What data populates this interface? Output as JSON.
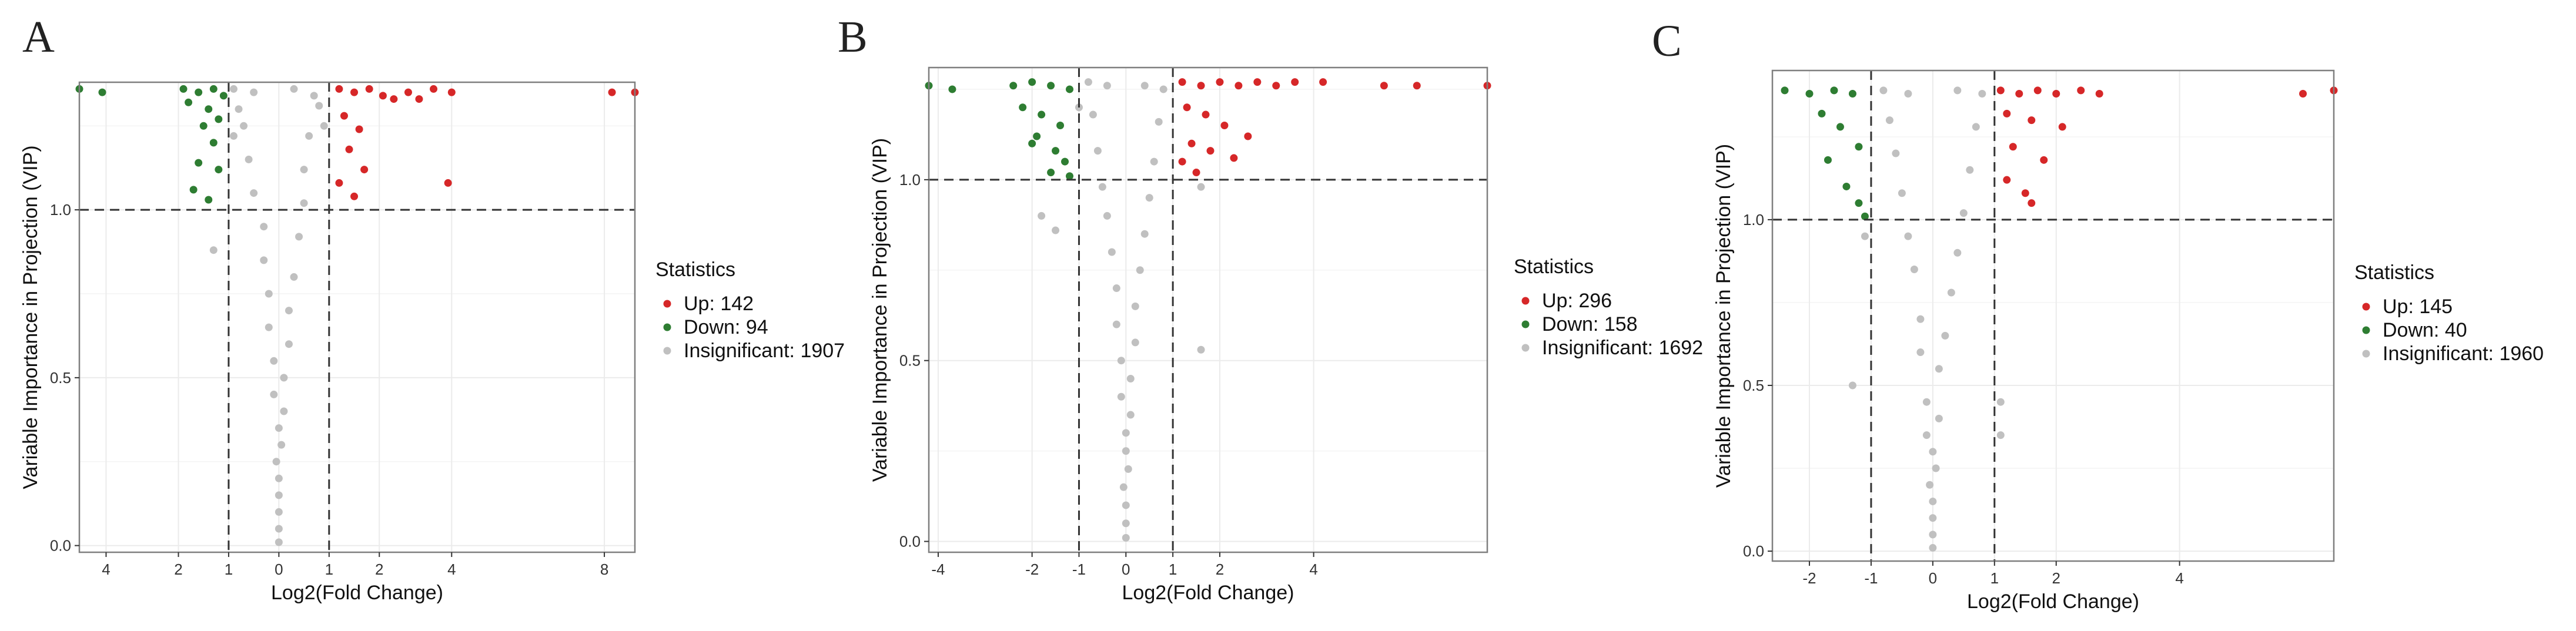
{
  "figure": {
    "panels": [
      "A",
      "B",
      "C"
    ]
  },
  "colors": {
    "up": "#d62728",
    "down": "#2e7d32",
    "insignificant": "#c0c0c0",
    "grid": "#ebebeb",
    "frame": "#7f7f7f"
  },
  "chart_data": [
    {
      "type": "scatter",
      "panel": "A",
      "xlabel": "Log2(Fold Change)",
      "ylabel": "Variable Importance in Projection (VIP)",
      "x_ticks": [
        "4",
        "2",
        "1",
        "0",
        "1",
        "2",
        "4",
        "8"
      ],
      "y_ticks": [
        "0.0",
        "0.5",
        "1.0"
      ],
      "xlim": [
        -4.7,
        8.8
      ],
      "ylim": [
        -0.02,
        1.38
      ],
      "thresholds": {
        "x": [
          -1,
          1
        ],
        "y": 1.0
      },
      "legend": {
        "title": "Statistics",
        "items": [
          {
            "key": "up",
            "label": "Up: 142"
          },
          {
            "key": "down",
            "label": "Down: 94"
          },
          {
            "key": "insignificant",
            "label": "Insignificant: 1907"
          }
        ]
      },
      "series": [
        {
          "key": "up",
          "points": [
            [
              1.2,
              1.36
            ],
            [
              1.5,
              1.35
            ],
            [
              1.8,
              1.36
            ],
            [
              2.1,
              1.34
            ],
            [
              2.4,
              1.33
            ],
            [
              2.8,
              1.35
            ],
            [
              3.1,
              1.33
            ],
            [
              3.5,
              1.36
            ],
            [
              4.0,
              1.35
            ],
            [
              1.3,
              1.28
            ],
            [
              1.6,
              1.24
            ],
            [
              1.4,
              1.18
            ],
            [
              1.7,
              1.12
            ],
            [
              1.2,
              1.08
            ],
            [
              1.5,
              1.04
            ],
            [
              3.9,
              1.08
            ],
            [
              8.2,
              1.35
            ],
            [
              8.8,
              1.35
            ]
          ]
        },
        {
          "key": "down",
          "points": [
            [
              -4.7,
              1.36
            ],
            [
              -4.1,
              1.35
            ],
            [
              -1.9,
              1.36
            ],
            [
              -1.6,
              1.35
            ],
            [
              -1.3,
              1.36
            ],
            [
              -1.1,
              1.34
            ],
            [
              -1.8,
              1.32
            ],
            [
              -1.4,
              1.3
            ],
            [
              -1.2,
              1.27
            ],
            [
              -1.5,
              1.25
            ],
            [
              -1.3,
              1.2
            ],
            [
              -1.6,
              1.14
            ],
            [
              -1.2,
              1.12
            ],
            [
              -1.7,
              1.06
            ],
            [
              -1.4,
              1.03
            ]
          ]
        },
        {
          "key": "insignificant",
          "points": [
            [
              -0.9,
              1.36
            ],
            [
              -0.5,
              1.35
            ],
            [
              0.3,
              1.36
            ],
            [
              0.7,
              1.34
            ],
            [
              -0.8,
              1.3
            ],
            [
              0.8,
              1.31
            ],
            [
              -0.7,
              1.25
            ],
            [
              0.6,
              1.22
            ],
            [
              -0.6,
              1.15
            ],
            [
              0.5,
              1.12
            ],
            [
              -0.5,
              1.05
            ],
            [
              0.5,
              1.02
            ],
            [
              -0.3,
              0.95
            ],
            [
              0.4,
              0.92
            ],
            [
              -1.3,
              0.88
            ],
            [
              -0.3,
              0.85
            ],
            [
              0.3,
              0.8
            ],
            [
              -0.2,
              0.75
            ],
            [
              0.2,
              0.7
            ],
            [
              -0.2,
              0.65
            ],
            [
              0.2,
              0.6
            ],
            [
              -0.1,
              0.55
            ],
            [
              0.1,
              0.5
            ],
            [
              -0.1,
              0.45
            ],
            [
              0.1,
              0.4
            ],
            [
              0.0,
              0.35
            ],
            [
              0.05,
              0.3
            ],
            [
              -0.05,
              0.25
            ],
            [
              0.0,
              0.2
            ],
            [
              0.0,
              0.15
            ],
            [
              0.0,
              0.1
            ],
            [
              0.0,
              0.05
            ],
            [
              0.0,
              0.01
            ],
            [
              0.9,
              1.25
            ],
            [
              -0.9,
              1.22
            ]
          ]
        }
      ]
    },
    {
      "type": "scatter",
      "panel": "B",
      "xlabel": "Log2(Fold Change)",
      "ylabel": "Variable Importance in Projection (VIP)",
      "x_ticks": [
        "-4",
        "-2",
        "-1",
        "0",
        "1",
        "2",
        "4"
      ],
      "y_ticks": [
        "0.0",
        "0.5",
        "1.0"
      ],
      "xlim": [
        -4.2,
        7.7
      ],
      "ylim": [
        -0.03,
        1.31
      ],
      "thresholds": {
        "x": [
          -1,
          1
        ],
        "y": 1.0
      },
      "legend": {
        "title": "Statistics",
        "items": [
          {
            "key": "up",
            "label": "Up: 296"
          },
          {
            "key": "down",
            "label": "Down: 158"
          },
          {
            "key": "insignificant",
            "label": "Insignificant: 1692"
          }
        ]
      },
      "series": [
        {
          "key": "up",
          "points": [
            [
              1.2,
              1.27
            ],
            [
              1.6,
              1.26
            ],
            [
              2.0,
              1.27
            ],
            [
              2.4,
              1.26
            ],
            [
              2.8,
              1.27
            ],
            [
              3.2,
              1.26
            ],
            [
              3.6,
              1.27
            ],
            [
              4.2,
              1.27
            ],
            [
              5.5,
              1.26
            ],
            [
              6.2,
              1.26
            ],
            [
              7.7,
              1.26
            ],
            [
              1.3,
              1.2
            ],
            [
              1.7,
              1.18
            ],
            [
              2.1,
              1.15
            ],
            [
              1.4,
              1.1
            ],
            [
              1.8,
              1.08
            ],
            [
              2.6,
              1.12
            ],
            [
              1.2,
              1.05
            ],
            [
              1.5,
              1.02
            ],
            [
              2.3,
              1.06
            ]
          ]
        },
        {
          "key": "down",
          "points": [
            [
              -4.2,
              1.26
            ],
            [
              -3.7,
              1.25
            ],
            [
              -2.4,
              1.26
            ],
            [
              -2.0,
              1.27
            ],
            [
              -1.6,
              1.26
            ],
            [
              -1.2,
              1.25
            ],
            [
              -2.2,
              1.2
            ],
            [
              -1.8,
              1.18
            ],
            [
              -1.4,
              1.15
            ],
            [
              -1.9,
              1.12
            ],
            [
              -1.5,
              1.08
            ],
            [
              -2.0,
              1.1
            ],
            [
              -1.3,
              1.05
            ],
            [
              -1.6,
              1.02
            ],
            [
              -1.2,
              1.01
            ]
          ]
        },
        {
          "key": "insignificant",
          "points": [
            [
              -0.8,
              1.27
            ],
            [
              -0.4,
              1.26
            ],
            [
              0.4,
              1.26
            ],
            [
              0.8,
              1.25
            ],
            [
              -0.7,
              1.18
            ],
            [
              0.7,
              1.16
            ],
            [
              -0.6,
              1.08
            ],
            [
              0.6,
              1.05
            ],
            [
              -0.5,
              0.98
            ],
            [
              0.5,
              0.95
            ],
            [
              -0.4,
              0.9
            ],
            [
              0.4,
              0.85
            ],
            [
              -0.3,
              0.8
            ],
            [
              -1.8,
              0.9
            ],
            [
              -1.5,
              0.86
            ],
            [
              1.6,
              0.98
            ],
            [
              0.3,
              0.75
            ],
            [
              -0.2,
              0.7
            ],
            [
              0.2,
              0.65
            ],
            [
              -0.2,
              0.6
            ],
            [
              0.2,
              0.55
            ],
            [
              -0.1,
              0.5
            ],
            [
              0.1,
              0.45
            ],
            [
              -0.1,
              0.4
            ],
            [
              0.1,
              0.35
            ],
            [
              0.0,
              0.3
            ],
            [
              0.0,
              0.25
            ],
            [
              0.05,
              0.2
            ],
            [
              -0.05,
              0.15
            ],
            [
              0.0,
              0.1
            ],
            [
              0.0,
              0.05
            ],
            [
              0.0,
              0.01
            ],
            [
              1.6,
              0.53
            ],
            [
              -1.0,
              1.2
            ]
          ]
        }
      ]
    },
    {
      "type": "scatter",
      "panel": "C",
      "xlabel": "Log2(Fold Change)",
      "ylabel": "Variable Importance in Projection (VIP)",
      "x_ticks": [
        "-2",
        "-1",
        "0",
        "1",
        "2",
        "4"
      ],
      "y_ticks": [
        "0.0",
        "0.5",
        "1.0"
      ],
      "xlim": [
        -2.6,
        6.5
      ],
      "ylim": [
        -0.03,
        1.45
      ],
      "thresholds": {
        "x": [
          -1,
          1
        ],
        "y": 1.0
      },
      "legend": {
        "title": "Statistics",
        "items": [
          {
            "key": "up",
            "label": "Up: 145"
          },
          {
            "key": "down",
            "label": "Down: 40"
          },
          {
            "key": "insignificant",
            "label": "Insignificant: 1960"
          }
        ]
      },
      "series": [
        {
          "key": "up",
          "points": [
            [
              1.1,
              1.39
            ],
            [
              1.4,
              1.38
            ],
            [
              1.7,
              1.39
            ],
            [
              2.0,
              1.38
            ],
            [
              2.4,
              1.39
            ],
            [
              2.7,
              1.38
            ],
            [
              1.2,
              1.32
            ],
            [
              1.6,
              1.3
            ],
            [
              2.1,
              1.28
            ],
            [
              1.3,
              1.22
            ],
            [
              1.8,
              1.18
            ],
            [
              1.2,
              1.12
            ],
            [
              1.5,
              1.08
            ],
            [
              1.6,
              1.05
            ],
            [
              6.0,
              1.38
            ],
            [
              6.5,
              1.39
            ]
          ]
        },
        {
          "key": "down",
          "points": [
            [
              -2.4,
              1.39
            ],
            [
              -2.0,
              1.38
            ],
            [
              -1.6,
              1.39
            ],
            [
              -1.3,
              1.38
            ],
            [
              -1.8,
              1.32
            ],
            [
              -1.5,
              1.28
            ],
            [
              -1.2,
              1.22
            ],
            [
              -1.7,
              1.18
            ],
            [
              -1.4,
              1.1
            ],
            [
              -1.2,
              1.05
            ],
            [
              -1.1,
              1.01
            ]
          ]
        },
        {
          "key": "insignificant",
          "points": [
            [
              -0.8,
              1.39
            ],
            [
              -0.4,
              1.38
            ],
            [
              0.4,
              1.39
            ],
            [
              0.8,
              1.38
            ],
            [
              -0.7,
              1.3
            ],
            [
              0.7,
              1.28
            ],
            [
              -0.6,
              1.2
            ],
            [
              0.6,
              1.15
            ],
            [
              -0.5,
              1.08
            ],
            [
              0.5,
              1.02
            ],
            [
              -0.4,
              0.95
            ],
            [
              0.4,
              0.9
            ],
            [
              -1.1,
              0.95
            ],
            [
              -0.3,
              0.85
            ],
            [
              0.3,
              0.78
            ],
            [
              -0.2,
              0.7
            ],
            [
              0.2,
              0.65
            ],
            [
              -0.2,
              0.6
            ],
            [
              0.1,
              0.55
            ],
            [
              -1.3,
              0.5
            ],
            [
              1.1,
              0.45
            ],
            [
              -0.1,
              0.45
            ],
            [
              0.1,
              0.4
            ],
            [
              -0.1,
              0.35
            ],
            [
              0.0,
              0.3
            ],
            [
              0.05,
              0.25
            ],
            [
              -0.05,
              0.2
            ],
            [
              0.0,
              0.15
            ],
            [
              0.0,
              0.1
            ],
            [
              0.0,
              0.05
            ],
            [
              0.0,
              0.01
            ],
            [
              1.1,
              0.35
            ]
          ]
        }
      ]
    }
  ]
}
